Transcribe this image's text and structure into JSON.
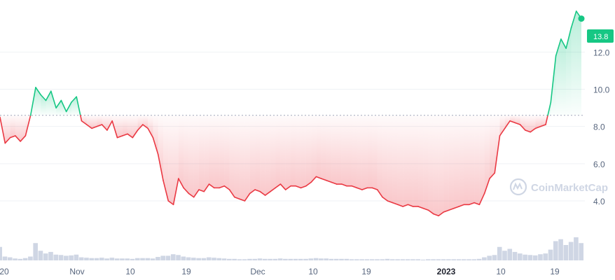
{
  "chart_data": {
    "type": "area",
    "title": "",
    "xlabel": "",
    "ylabel": "",
    "ylim": [
      0.8,
      14.8
    ],
    "grid": true,
    "y_ticks": [
      "4.0",
      "6.0",
      "8.0",
      "10.0",
      "12.0"
    ],
    "x_ticks": [
      "20",
      "Nov",
      "10",
      "19",
      "Dec",
      "10",
      "19",
      "2023",
      "10",
      "19"
    ],
    "baseline": 8.6,
    "last_price": "13.8",
    "colors": {
      "up": "#16c784",
      "down": "#ea3943",
      "volume": "#cfd6e4",
      "grid": "#eff2f5",
      "text": "#58667e"
    },
    "series": [
      {
        "values": [
          8.5,
          7.1,
          7.4,
          7.5,
          7.2,
          7.5,
          8.6,
          10.1,
          9.7,
          9.4,
          9.9,
          9.0,
          9.4,
          8.8,
          9.3,
          9.6,
          8.3,
          8.1,
          7.9,
          8.0,
          8.1,
          7.8,
          8.3,
          7.4,
          7.5,
          7.6,
          7.4,
          7.8,
          8.1,
          7.9,
          7.4,
          6.5,
          5.1,
          4.0,
          3.8,
          5.2,
          4.7,
          4.4,
          4.2,
          4.6,
          4.5,
          4.9,
          4.7,
          4.7,
          4.8,
          4.6,
          4.2,
          4.1,
          4.0,
          4.4,
          4.6,
          4.5,
          4.3,
          4.5,
          4.7,
          4.9,
          4.6,
          4.8,
          4.8,
          4.7,
          4.8,
          5.0,
          5.3,
          5.2,
          5.1,
          5.0,
          4.9,
          4.9,
          4.8,
          4.8,
          4.7,
          4.6,
          4.7,
          4.7,
          4.6,
          4.2,
          4.0,
          3.9,
          3.8,
          3.7,
          3.8,
          3.7,
          3.7,
          3.6,
          3.5,
          3.3,
          3.2,
          3.4,
          3.5,
          3.6,
          3.7,
          3.8,
          3.8,
          3.9,
          3.8,
          4.4,
          5.2,
          5.5,
          7.5,
          7.9,
          8.3,
          8.2,
          8.1,
          7.8,
          7.7,
          7.9,
          8.0,
          8.1,
          9.3,
          11.8,
          12.7,
          12.2,
          13.3,
          14.2,
          13.8
        ],
        "volume": [
          0.35,
          0.1,
          0.08,
          0.05,
          0.04,
          0.06,
          0.1,
          0.45,
          0.25,
          0.18,
          0.22,
          0.15,
          0.14,
          0.12,
          0.13,
          0.15,
          0.08,
          0.07,
          0.06,
          0.06,
          0.07,
          0.05,
          0.07,
          0.05,
          0.05,
          0.05,
          0.04,
          0.06,
          0.06,
          0.06,
          0.05,
          0.09,
          0.12,
          0.12,
          0.16,
          0.14,
          0.1,
          0.08,
          0.07,
          0.06,
          0.06,
          0.08,
          0.07,
          0.06,
          0.05,
          0.04,
          0.04,
          0.03,
          0.03,
          0.04,
          0.04,
          0.05,
          0.04,
          0.04,
          0.04,
          0.05,
          0.04,
          0.04,
          0.04,
          0.04,
          0.04,
          0.05,
          0.06,
          0.05,
          0.05,
          0.04,
          0.04,
          0.04,
          0.04,
          0.03,
          0.03,
          0.03,
          0.03,
          0.03,
          0.03,
          0.03,
          0.04,
          0.03,
          0.03,
          0.03,
          0.03,
          0.03,
          0.03,
          0.02,
          0.03,
          0.03,
          0.03,
          0.03,
          0.03,
          0.03,
          0.03,
          0.03,
          0.03,
          0.03,
          0.04,
          0.08,
          0.12,
          0.14,
          0.35,
          0.25,
          0.3,
          0.22,
          0.18,
          0.15,
          0.14,
          0.13,
          0.16,
          0.18,
          0.28,
          0.5,
          0.55,
          0.4,
          0.48,
          0.6,
          0.45
        ]
      }
    ]
  },
  "watermark": "CoinMarketCap"
}
